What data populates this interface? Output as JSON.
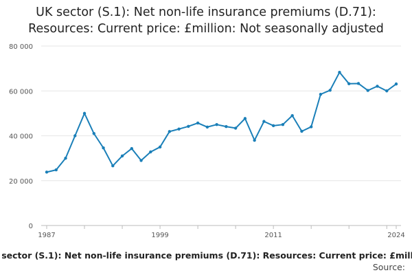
{
  "chart_data": {
    "type": "line",
    "title_line1": "UK sector (S.1): Net non-life insurance premiums (D.71):",
    "title_line2": "Resources: Current price: £million: Not seasonally adjusted",
    "xlabel": "",
    "ylabel": "",
    "x_tick_labels": [
      "1987",
      "1999",
      "2011",
      "2024"
    ],
    "y_tick_labels": [
      "0",
      "20 000",
      "40 000",
      "60 000",
      "80 000"
    ],
    "ylim": [
      0,
      80000
    ],
    "xlim": [
      1987,
      2024
    ],
    "grid": true,
    "legend_text": "UK sector (S.1): Net non-life insurance premiums (D.71): Resources: Current price: £million: Not seasonally adjusted",
    "source_text": "Source:",
    "line_color": "#1a7fb8",
    "series": [
      {
        "name": "UK sector (S.1): Net non-life insurance premiums (D.71): Resources: Current price: £million: Not seasonally adjusted",
        "x": [
          1987,
          1988,
          1989,
          1990,
          1991,
          1992,
          1993,
          1994,
          1995,
          1996,
          1997,
          1998,
          1999,
          2000,
          2001,
          2002,
          2003,
          2004,
          2005,
          2006,
          2007,
          2008,
          2009,
          2010,
          2011,
          2012,
          2013,
          2014,
          2015,
          2016,
          2017,
          2018,
          2019,
          2020,
          2021,
          2022,
          2023,
          2024
        ],
        "values": [
          23800,
          24800,
          30000,
          40000,
          50000,
          41000,
          34600,
          26600,
          31000,
          34300,
          29000,
          32800,
          35000,
          41900,
          43000,
          44200,
          45700,
          43900,
          45000,
          44100,
          43400,
          47700,
          38000,
          46400,
          44500,
          45000,
          49000,
          42000,
          44000,
          58500,
          60300,
          68300,
          63200,
          63300,
          60200,
          62100,
          60000,
          63100
        ]
      }
    ]
  }
}
